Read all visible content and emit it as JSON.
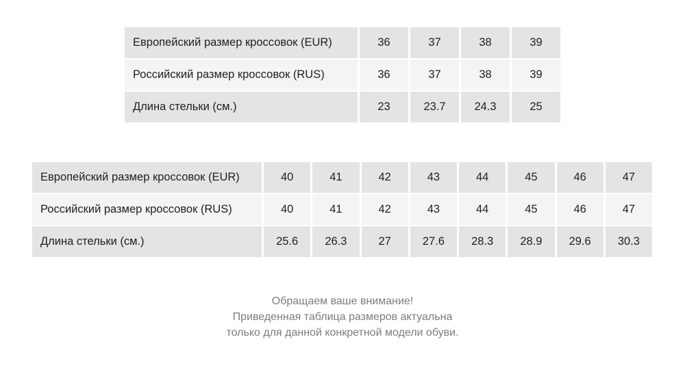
{
  "tables": [
    {
      "rows": [
        {
          "label": "Европейский размер кроссовок (EUR)",
          "values": [
            "36",
            "37",
            "38",
            "39"
          ]
        },
        {
          "label": "Российский размер кроссовок (RUS)",
          "values": [
            "36",
            "37",
            "38",
            "39"
          ]
        },
        {
          "label": "Длина стельки (см.)",
          "values": [
            "23",
            "23.7",
            "24.3",
            "25"
          ]
        }
      ]
    },
    {
      "rows": [
        {
          "label": "Европейский размер кроссовок (EUR)",
          "values": [
            "40",
            "41",
            "42",
            "43",
            "44",
            "45",
            "46",
            "47"
          ]
        },
        {
          "label": "Российский размер кроссовок (RUS)",
          "values": [
            "40",
            "41",
            "42",
            "43",
            "44",
            "45",
            "46",
            "47"
          ]
        },
        {
          "label": "Длина стельки (см.)",
          "values": [
            "25.6",
            "26.3",
            "27",
            "27.6",
            "28.3",
            "28.9",
            "29.6",
            "30.3"
          ]
        }
      ]
    }
  ],
  "note": {
    "line1": "Обращаем ваше внимание!",
    "line2": "Приведенная таблица размеров актуальна",
    "line3": "только для данной конкретной модели обуви."
  },
  "colors": {
    "row_dark": "#e4e4e4",
    "row_light": "#f4f4f4",
    "text": "#212121",
    "note_text": "#7c7c7c"
  }
}
